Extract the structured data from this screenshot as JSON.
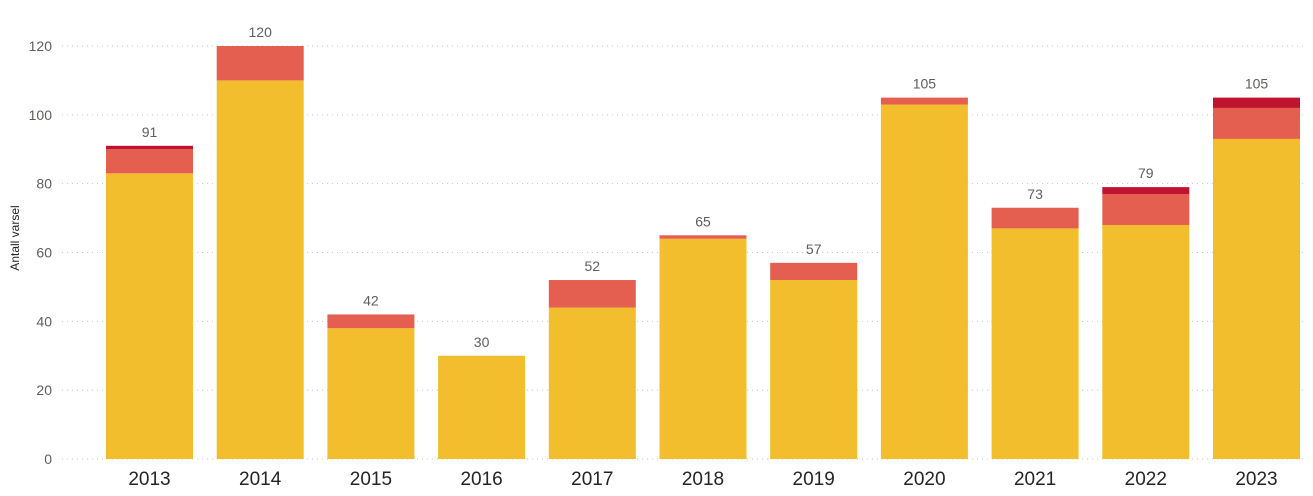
{
  "chart_data": {
    "type": "bar",
    "stacked": true,
    "title": "",
    "xlabel": "",
    "ylabel": "Antall varsel",
    "ylim": [
      0,
      120
    ],
    "yticks": [
      "0",
      "20",
      "40",
      "60",
      "80",
      "100",
      "120"
    ],
    "grid": true,
    "categories": [
      "2013",
      "2014",
      "2015",
      "2016",
      "2017",
      "2018",
      "2019",
      "2020",
      "2021",
      "2022",
      "2023"
    ],
    "series": [
      {
        "color": "#f2be2e",
        "values": [
          83,
          110,
          38,
          30,
          44,
          64,
          52,
          103,
          67,
          68,
          93
        ]
      },
      {
        "color": "#e45f4f",
        "values": [
          7,
          10,
          4,
          0,
          8,
          1,
          5,
          2,
          6,
          9,
          9
        ]
      },
      {
        "color": "#c0132f",
        "values": [
          1,
          0,
          0,
          0,
          0,
          0,
          0,
          0,
          0,
          2,
          3
        ]
      }
    ],
    "totals": [
      "91",
      "120",
      "42",
      "30",
      "52",
      "65",
      "57",
      "105",
      "73",
      "79",
      "105"
    ]
  }
}
